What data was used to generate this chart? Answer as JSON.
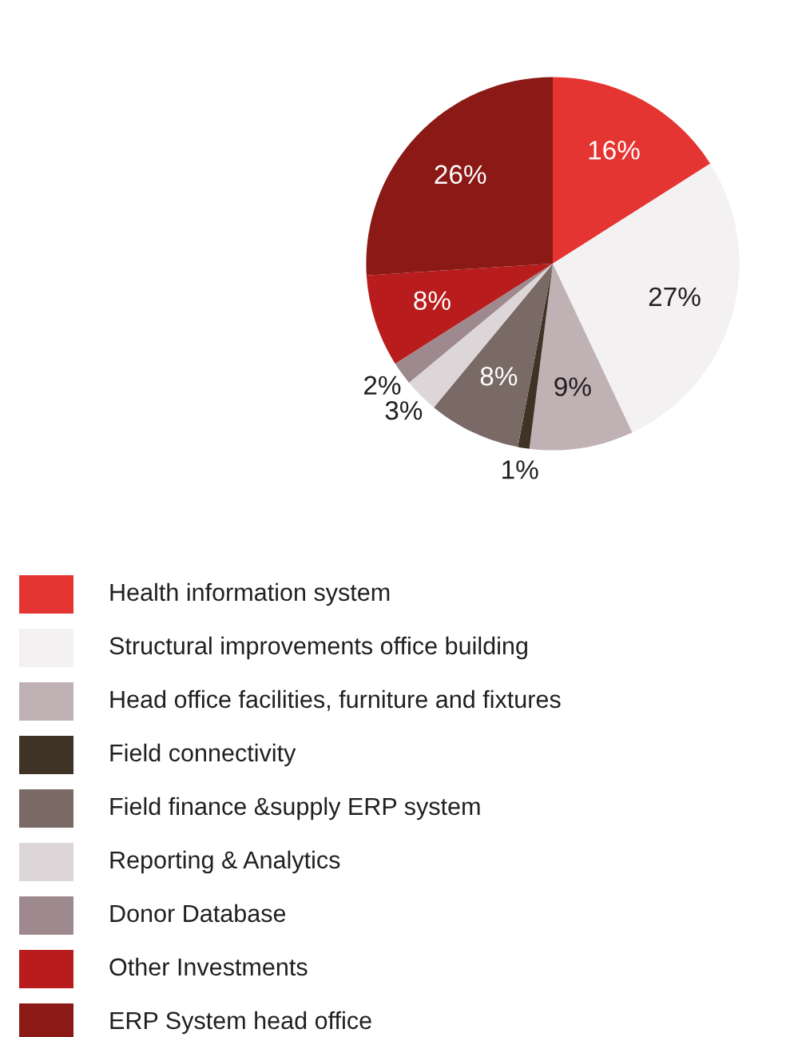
{
  "chart_data": {
    "type": "pie",
    "categories": [
      "Health information system",
      "Structural improvements office building",
      "Head office facilities, furniture and fixtures",
      "Field connectivity",
      "Field finance &supply ERP system",
      "Reporting & Analytics",
      "Donor Database",
      "Other Investments",
      "ERP System head office"
    ],
    "values": [
      16,
      27,
      9,
      1,
      8,
      3,
      2,
      8,
      26
    ],
    "value_labels": [
      "16%",
      "27%",
      "9%",
      "1%",
      "8%",
      "3%",
      "2%",
      "8%",
      "26%"
    ],
    "colors": [
      "#e53532",
      "#f4f1f2",
      "#c0b2b4",
      "#3f3325",
      "#7a6a66",
      "#ddd6d8",
      "#9e8a8e",
      "#b81c1c",
      "#8b1a16"
    ],
    "legend": "bottom"
  }
}
